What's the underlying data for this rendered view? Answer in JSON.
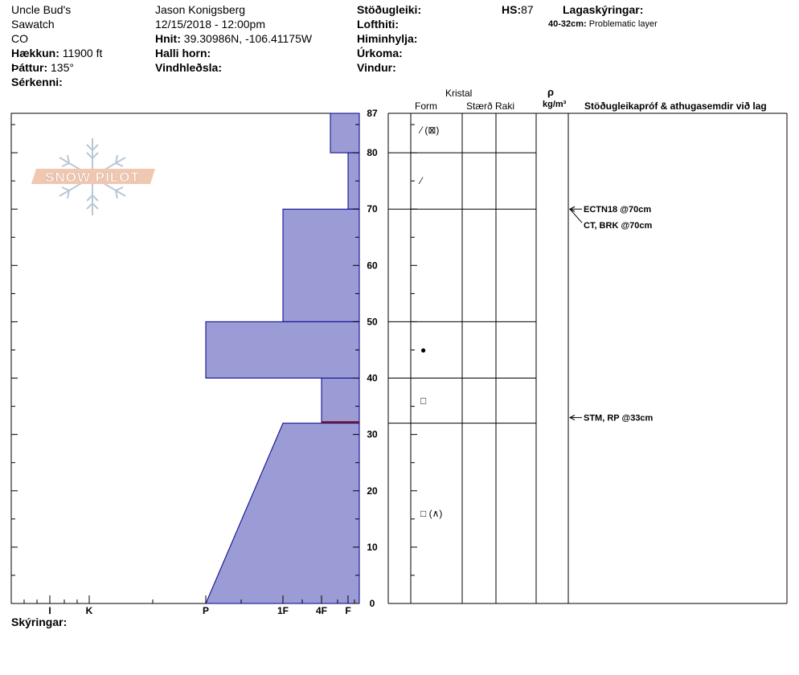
{
  "header": {
    "col1": {
      "location": "Uncle Bud's",
      "range": "Sawatch",
      "state": "CO",
      "elevation_label": "Hækkun:",
      "elevation_value": "11900 ft",
      "aspect_label": "Þáttur:",
      "aspect_value": "135°",
      "features_label": "Sérkenni:"
    },
    "col2": {
      "observer": "Jason Konigsberg",
      "datetime": "12/15/2018 - 12:00pm",
      "coords_label": "Hnit:",
      "coords_value": "39.30986N, -106.41175W",
      "slope_label": "Halli horn:",
      "wind_loading_label": "Vindhleðsla:"
    },
    "col3": {
      "stability_label": "Stöðugleiki:",
      "air_temp_label": "Lofthiti:",
      "sky_label": "Himinhylja:",
      "precip_label": "Úrkoma:",
      "wind_label": "Vindur:"
    },
    "hs_label": "HS:",
    "hs_value": "87",
    "legend": {
      "title": "Lagaskýringar:",
      "range": "40-32cm:",
      "desc": "Problematic layer"
    }
  },
  "columns": {
    "crystal": "Kristal",
    "form": "Form",
    "size": "Stærð",
    "moisture": "Raki",
    "rho": "ρ",
    "density_unit": "kg/m³",
    "comments": "Stöðugleikapróf & athugasemdir við lag"
  },
  "footer": {
    "notes_label": "Skýringar:"
  },
  "colors": {
    "layer_fill": "#9b9bd6",
    "layer_stroke": "#00008b",
    "problem_line": "#8b1a1a"
  },
  "chart_data": {
    "type": "snow-profile-hardness",
    "depth_unit": "cm",
    "ylim": [
      0,
      87
    ],
    "y_ticks": [
      0,
      10,
      20,
      30,
      40,
      50,
      60,
      70,
      80,
      87
    ],
    "hardness_scale": [
      "I",
      "K",
      "P",
      "1F",
      "4F",
      "F"
    ],
    "layers": [
      {
        "top": 87,
        "bottom": 80,
        "hardness_top": "F-",
        "hardness_bottom": "F-"
      },
      {
        "top": 80,
        "bottom": 70,
        "hardness_top": "F",
        "hardness_bottom": "F"
      },
      {
        "top": 70,
        "bottom": 50,
        "hardness_top": "1F",
        "hardness_bottom": "1F"
      },
      {
        "top": 50,
        "bottom": 40,
        "hardness_top": "P",
        "hardness_bottom": "P"
      },
      {
        "top": 40,
        "bottom": 32,
        "hardness_top": "4F",
        "hardness_bottom": "4F"
      },
      {
        "top": 32,
        "bottom": 0,
        "hardness_top": "1F",
        "hardness_bottom": "P"
      }
    ],
    "problem_layer_depth": 32,
    "grain_forms": [
      {
        "depth": 84,
        "symbol": "⁄ (⊠)"
      },
      {
        "depth": 75,
        "symbol": "⁄"
      },
      {
        "depth": 45,
        "symbol": "●"
      },
      {
        "depth": 36,
        "symbol": "□"
      },
      {
        "depth": 16,
        "symbol": "□ (∧)"
      }
    ],
    "tests": [
      {
        "depth": 70,
        "label": "ECTN18 @70cm"
      },
      {
        "depth": 70,
        "label": "CT, BRK @70cm"
      },
      {
        "depth": 33,
        "label": "STM, RP @33cm"
      }
    ]
  }
}
